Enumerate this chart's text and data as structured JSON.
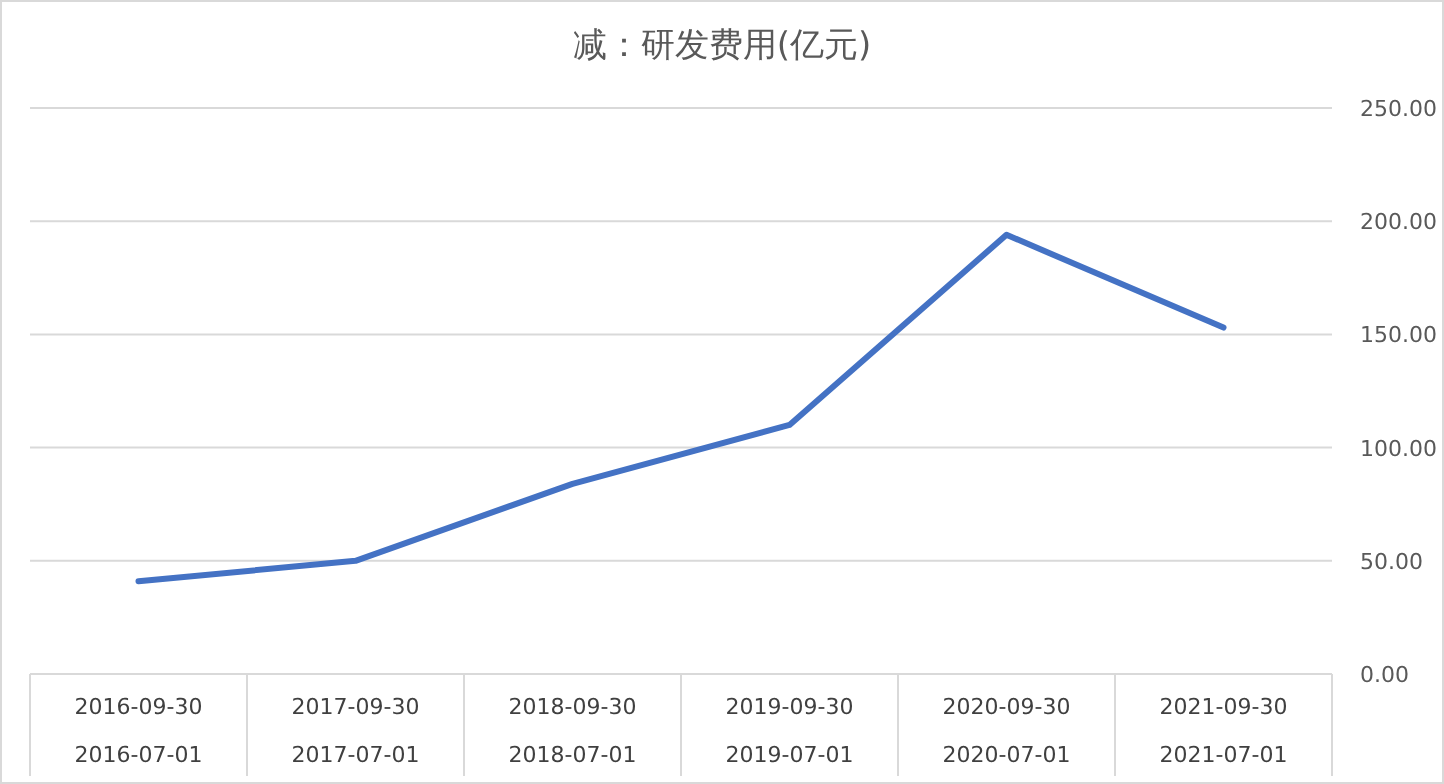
{
  "chart_data": {
    "type": "line",
    "title": "减：研发费用(亿元)",
    "categories": [
      "2016-09-30\n2016-07-01",
      "2017-09-30\n2017-07-01",
      "2018-09-30\n2018-07-01",
      "2019-09-30\n2019-07-01",
      "2020-09-30\n2020-07-01",
      "2021-09-30\n2021-07-01"
    ],
    "series": [
      {
        "color": "#4472c4",
        "values": [
          41,
          50,
          84,
          110,
          194,
          153
        ]
      }
    ],
    "ylim": [
      0,
      250
    ],
    "yticks": [
      {
        "value": 0,
        "label": "0.00"
      },
      {
        "value": 50,
        "label": "50.00"
      },
      {
        "value": 100,
        "label": "100.00"
      },
      {
        "value": 150,
        "label": "150.00"
      },
      {
        "value": 200,
        "label": "200.00"
      },
      {
        "value": 250,
        "label": "250.00"
      }
    ],
    "grid": "y",
    "marker": "none",
    "line_style": "solid"
  }
}
